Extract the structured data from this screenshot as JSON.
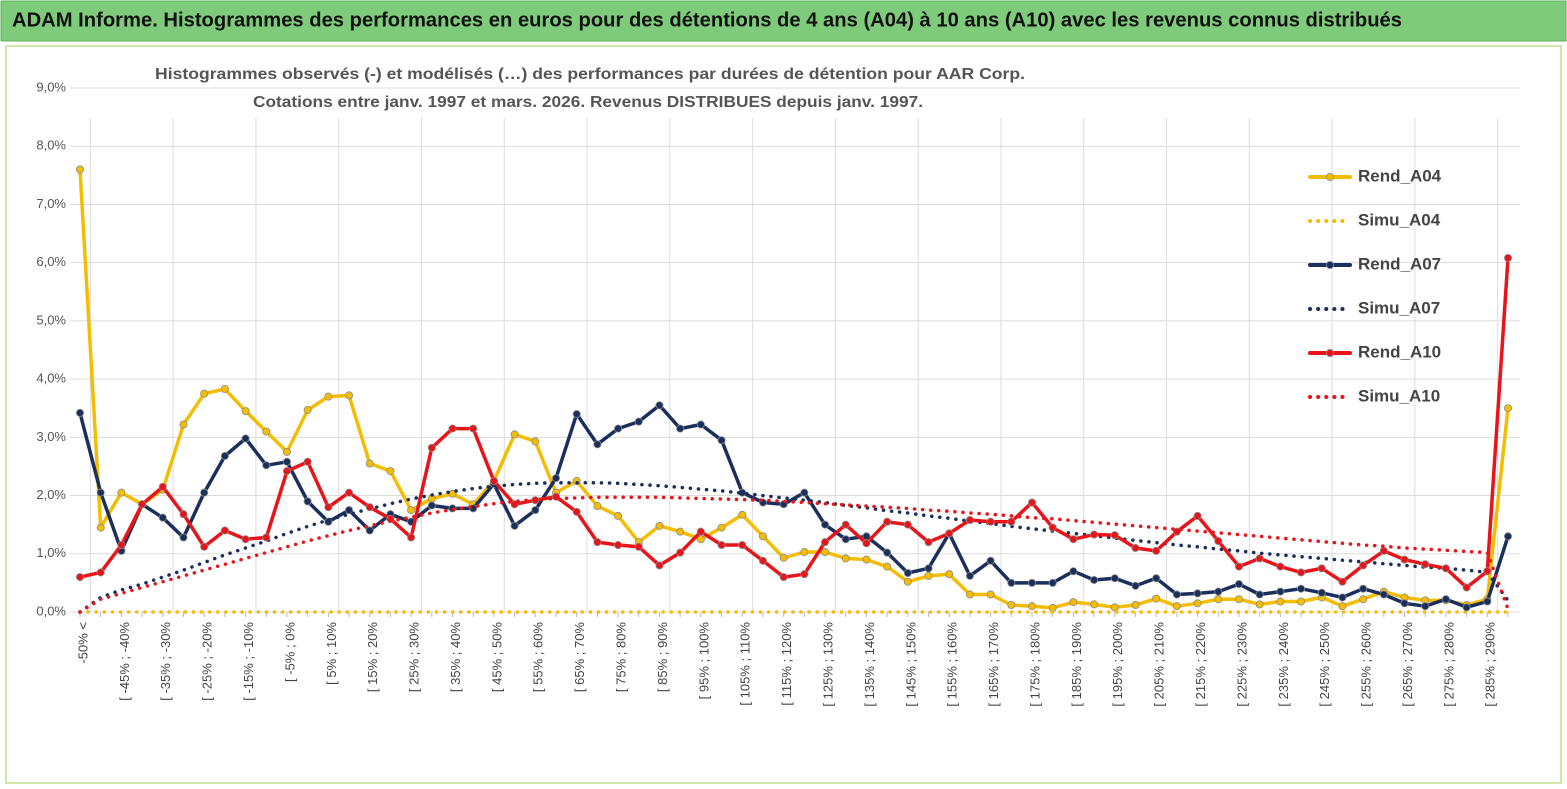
{
  "header": {
    "title": "ADAM Informe. Histogrammes des performances en euros pour des détentions de 4 ans (A04) à 10 ans (A10) avec les revenus connus distribués"
  },
  "chart_data": {
    "type": "line",
    "title": "Histogrammes observés (-) et modélisés (…) des performances par durées de détention pour AAR Corp.",
    "subtitle": "Cotations entre janv. 1997 et mars. 2026. Revenus DISTRIBUES depuis janv. 1997.",
    "categories": [
      "-50% <",
      null,
      "[ -45% ; -40%",
      null,
      "[ -35% ; -30%",
      null,
      "[ -25% ; -20%",
      null,
      "[ -15% ; -10%",
      null,
      "[ -5% ; 0%",
      null,
      "[ 5% ; 10%",
      null,
      "[ 15% ; 20%",
      null,
      "[ 25% ; 30%",
      null,
      "[ 35% ; 40%",
      null,
      "[ 45% ; 50%",
      null,
      "[ 55% ; 60%",
      null,
      "[ 65% ; 70%",
      null,
      "[ 75% ; 80%",
      null,
      "[ 85% ; 90%",
      null,
      "[ 95% ; 100%",
      null,
      "[ 105% ; 110%",
      null,
      "[ 115% ; 120%",
      null,
      "[ 125% ; 130%",
      null,
      "[ 135% ; 140%",
      null,
      "[ 145% ; 150%",
      null,
      "[ 155% ; 160%",
      null,
      "[ 165% ; 170%",
      null,
      "[ 175% ; 180%",
      null,
      "[ 185% ; 190%",
      null,
      "[ 195% ; 200%",
      null,
      "[ 205% ; 210%",
      null,
      "[ 215% ; 220%",
      null,
      "[ 225% ; 230%",
      null,
      "[ 235% ; 240%",
      null,
      "[ 245% ; 250%",
      null,
      "[ 255% ; 260%",
      null,
      "[ 265% ; 270%",
      null,
      "[ 275% ; 280%",
      null,
      "[ 285% ; 290%",
      null
    ],
    "ylim": [
      0,
      9
    ],
    "yticks": [
      {
        "value": 0,
        "label": "0,0%"
      },
      {
        "value": 1,
        "label": "1,0%"
      },
      {
        "value": 2,
        "label": "2,0%"
      },
      {
        "value": 3,
        "label": "3,0%"
      },
      {
        "value": 4,
        "label": "4,0%"
      },
      {
        "value": 5,
        "label": "5,0%"
      },
      {
        "value": 6,
        "label": "6,0%"
      },
      {
        "value": 7,
        "label": "7,0%"
      },
      {
        "value": 8,
        "label": "8,0%"
      },
      {
        "value": 9,
        "label": "9,0%"
      }
    ],
    "grid": true,
    "legend": "right",
    "series": [
      {
        "name": "Rend_A04",
        "color": "#f5bd02",
        "line_style": "solid",
        "marker": true,
        "values": [
          7.6,
          1.45,
          2.05,
          1.85,
          2.1,
          3.22,
          3.75,
          3.83,
          3.45,
          3.1,
          2.75,
          3.47,
          3.7,
          3.72,
          2.55,
          2.42,
          1.75,
          1.95,
          2.03,
          1.85,
          2.25,
          3.05,
          2.93,
          2.05,
          2.25,
          1.82,
          1.65,
          1.2,
          1.48,
          1.38,
          1.25,
          1.45,
          1.67,
          1.3,
          0.93,
          1.03,
          1.03,
          0.92,
          0.9,
          0.78,
          0.52,
          0.62,
          0.65,
          0.3,
          0.3,
          0.12,
          0.1,
          0.07,
          0.17,
          0.13,
          0.08,
          0.12,
          0.23,
          0.1,
          0.15,
          0.22,
          0.22,
          0.13,
          0.18,
          0.18,
          0.25,
          0.1,
          0.22,
          0.35,
          0.25,
          0.2,
          0.2,
          0.12,
          0.22,
          3.5
        ]
      },
      {
        "name": "Simu_A04",
        "color": "#f5bd02",
        "line_style": "dotted",
        "marker": false,
        "values": [
          0,
          0,
          0,
          0,
          0,
          0,
          0,
          0,
          0,
          0,
          0,
          0,
          0,
          0,
          0,
          0,
          0,
          0,
          0,
          0,
          0,
          0,
          0,
          0,
          0,
          0,
          0,
          0,
          0,
          0,
          0,
          0,
          0,
          0,
          0,
          0,
          0,
          0,
          0,
          0,
          0,
          0,
          0,
          0,
          0,
          0,
          0,
          0,
          0,
          0,
          0,
          0,
          0,
          0,
          0,
          0,
          0,
          0,
          0,
          0,
          0,
          0,
          0,
          0,
          0,
          0,
          0,
          0,
          0,
          0
        ]
      },
      {
        "name": "Rend_A07",
        "color": "#1b2f5c",
        "line_style": "solid",
        "marker": true,
        "values": [
          3.42,
          2.05,
          1.05,
          1.85,
          1.62,
          1.28,
          2.05,
          2.68,
          2.98,
          2.52,
          2.58,
          1.9,
          1.55,
          1.75,
          1.4,
          1.68,
          1.55,
          1.83,
          1.78,
          1.78,
          2.2,
          1.48,
          1.75,
          2.3,
          3.4,
          2.88,
          3.15,
          3.27,
          3.55,
          3.15,
          3.22,
          2.95,
          2.05,
          1.88,
          1.85,
          2.05,
          1.5,
          1.25,
          1.3,
          1.02,
          0.67,
          0.75,
          1.35,
          0.62,
          0.88,
          0.5,
          0.5,
          0.5,
          0.7,
          0.55,
          0.58,
          0.45,
          0.58,
          0.3,
          0.32,
          0.35,
          0.48,
          0.3,
          0.35,
          0.4,
          0.33,
          0.25,
          0.4,
          0.3,
          0.15,
          0.1,
          0.22,
          0.08,
          0.18,
          1.3
        ]
      },
      {
        "name": "Simu_A07",
        "color": "#1b2f5c",
        "line_style": "dotted",
        "marker": false,
        "values": [
          0,
          0.25,
          0.38,
          0.48,
          0.6,
          0.72,
          0.85,
          0.98,
          1.1,
          1.22,
          1.35,
          1.47,
          1.58,
          1.68,
          1.77,
          1.86,
          1.94,
          2.01,
          2.07,
          2.12,
          2.16,
          2.19,
          2.21,
          2.22,
          2.22,
          2.22,
          2.21,
          2.19,
          2.17,
          2.14,
          2.11,
          2.08,
          2.04,
          2.0,
          1.96,
          1.92,
          1.88,
          1.83,
          1.79,
          1.74,
          1.7,
          1.65,
          1.61,
          1.56,
          1.52,
          1.47,
          1.43,
          1.39,
          1.35,
          1.31,
          1.27,
          1.23,
          1.19,
          1.15,
          1.12,
          1.08,
          1.05,
          1.01,
          0.98,
          0.95,
          0.92,
          0.89,
          0.86,
          0.83,
          0.8,
          0.77,
          0.75,
          0.72,
          0.68,
          0.2
        ]
      },
      {
        "name": "Rend_A10",
        "color": "#e8141a",
        "line_style": "solid",
        "marker": true,
        "values": [
          0.6,
          0.68,
          1.15,
          1.85,
          2.15,
          1.68,
          1.12,
          1.4,
          1.25,
          1.28,
          2.42,
          2.58,
          1.8,
          2.05,
          1.8,
          1.6,
          1.28,
          2.82,
          3.15,
          3.15,
          2.25,
          1.85,
          1.92,
          1.98,
          1.72,
          1.2,
          1.15,
          1.12,
          0.8,
          1.02,
          1.38,
          1.15,
          1.15,
          0.88,
          0.6,
          0.65,
          1.2,
          1.5,
          1.18,
          1.55,
          1.5,
          1.2,
          1.35,
          1.58,
          1.55,
          1.55,
          1.88,
          1.45,
          1.25,
          1.33,
          1.32,
          1.1,
          1.05,
          1.38,
          1.65,
          1.22,
          0.78,
          0.92,
          0.78,
          0.68,
          0.75,
          0.52,
          0.8,
          1.05,
          0.9,
          0.82,
          0.75,
          0.42,
          0.7,
          6.08
        ]
      },
      {
        "name": "Simu_A10",
        "color": "#e8141a",
        "line_style": "dotted",
        "marker": false,
        "values": [
          0,
          0.22,
          0.32,
          0.42,
          0.52,
          0.62,
          0.72,
          0.82,
          0.92,
          1.02,
          1.12,
          1.22,
          1.31,
          1.4,
          1.48,
          1.56,
          1.63,
          1.7,
          1.76,
          1.81,
          1.86,
          1.9,
          1.93,
          1.95,
          1.96,
          1.97,
          1.97,
          1.97,
          1.97,
          1.96,
          1.95,
          1.94,
          1.93,
          1.92,
          1.9,
          1.88,
          1.86,
          1.84,
          1.82,
          1.8,
          1.78,
          1.75,
          1.73,
          1.7,
          1.68,
          1.65,
          1.62,
          1.6,
          1.57,
          1.54,
          1.51,
          1.48,
          1.45,
          1.42,
          1.39,
          1.36,
          1.33,
          1.3,
          1.27,
          1.24,
          1.21,
          1.18,
          1.15,
          1.13,
          1.1,
          1.08,
          1.06,
          1.04,
          1.02,
          0.05
        ]
      }
    ]
  }
}
